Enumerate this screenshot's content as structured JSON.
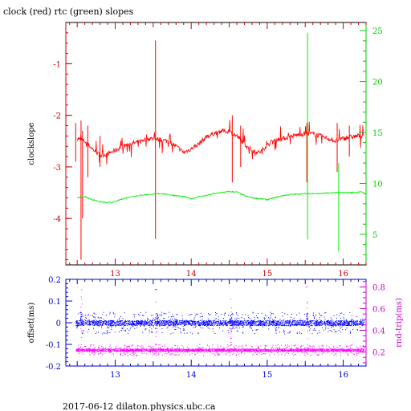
{
  "title": "clock (red) rtc (green) slopes",
  "footer": "2017-06-12  dilaton.physics.ubc.ca",
  "chart_data": [
    {
      "type": "line",
      "panel": "top",
      "xlim": [
        12.35,
        16.3
      ],
      "x_ticks": [
        "13",
        "14",
        "15",
        "16"
      ],
      "ylabel": "clockslope",
      "ylim": [
        -4.9,
        -0.2
      ],
      "y_ticks": [
        "-1",
        "-2",
        "-3",
        "-4"
      ],
      "y2lim": [
        2.0,
        25.8
      ],
      "y2_ticks": [
        "5",
        "10",
        "15",
        "20",
        "25"
      ],
      "colors": {
        "axis_left": "#cc0000",
        "axis_right": "#00cc00",
        "frame": "#000000"
      },
      "series": [
        {
          "axis": "left",
          "color": "#ff0000",
          "points": [
            [
              12.5,
              -2.45
            ],
            [
              12.6,
              -2.5
            ],
            [
              12.7,
              -2.65
            ],
            [
              12.8,
              -2.78
            ],
            [
              12.9,
              -2.75
            ],
            [
              13.0,
              -2.68
            ],
            [
              13.1,
              -2.6
            ],
            [
              13.2,
              -2.55
            ],
            [
              13.3,
              -2.52
            ],
            [
              13.4,
              -2.46
            ],
            [
              13.5,
              -2.45
            ],
            [
              13.6,
              -2.48
            ],
            [
              13.7,
              -2.5
            ],
            [
              13.8,
              -2.6
            ],
            [
              13.9,
              -2.72
            ],
            [
              14.0,
              -2.65
            ],
            [
              14.1,
              -2.55
            ],
            [
              14.2,
              -2.42
            ],
            [
              14.3,
              -2.35
            ],
            [
              14.4,
              -2.3
            ],
            [
              14.5,
              -2.32
            ],
            [
              14.6,
              -2.4
            ],
            [
              14.7,
              -2.55
            ],
            [
              14.8,
              -2.68
            ],
            [
              14.9,
              -2.72
            ],
            [
              15.0,
              -2.58
            ],
            [
              15.1,
              -2.48
            ],
            [
              15.2,
              -2.45
            ],
            [
              15.3,
              -2.42
            ],
            [
              15.4,
              -2.38
            ],
            [
              15.5,
              -2.35
            ],
            [
              15.6,
              -2.36
            ],
            [
              15.7,
              -2.4
            ],
            [
              15.8,
              -2.45
            ],
            [
              15.9,
              -2.5
            ],
            [
              16.0,
              -2.45
            ],
            [
              16.1,
              -2.42
            ],
            [
              16.2,
              -2.4
            ],
            [
              16.27,
              -2.4
            ]
          ],
          "spikes": [
            [
              12.48,
              -2.15,
              -2.9
            ],
            [
              12.55,
              -2.1,
              -4.8
            ],
            [
              12.57,
              -2.3,
              -4.0
            ],
            [
              12.64,
              -2.2,
              -3.2
            ],
            [
              12.8,
              -2.4,
              -3.0
            ],
            [
              13.53,
              -0.55,
              -4.4
            ],
            [
              14.54,
              -2.0,
              -3.3
            ],
            [
              14.65,
              -2.2,
              -3.0
            ],
            [
              15.52,
              -2.15,
              -3.3
            ],
            [
              15.92,
              -2.15,
              -3.1
            ],
            [
              16.08,
              -2.2,
              -2.8
            ]
          ]
        },
        {
          "axis": "right",
          "color": "#00ee00",
          "points": [
            [
              12.5,
              8.6
            ],
            [
              12.6,
              8.7
            ],
            [
              12.7,
              8.4
            ],
            [
              12.8,
              8.2
            ],
            [
              12.9,
              8.1
            ],
            [
              13.0,
              8.2
            ],
            [
              13.1,
              8.5
            ],
            [
              13.2,
              8.7
            ],
            [
              13.3,
              8.8
            ],
            [
              13.4,
              8.9
            ],
            [
              13.5,
              8.95
            ],
            [
              13.6,
              9.0
            ],
            [
              13.7,
              8.9
            ],
            [
              13.8,
              8.8
            ],
            [
              13.9,
              8.7
            ],
            [
              14.0,
              8.5
            ],
            [
              14.1,
              8.7
            ],
            [
              14.2,
              8.8
            ],
            [
              14.3,
              9.0
            ],
            [
              14.4,
              9.1
            ],
            [
              14.5,
              9.2
            ],
            [
              14.6,
              9.15
            ],
            [
              14.7,
              8.8
            ],
            [
              14.8,
              8.6
            ],
            [
              14.9,
              8.5
            ],
            [
              15.0,
              8.4
            ],
            [
              15.1,
              8.6
            ],
            [
              15.2,
              8.8
            ],
            [
              15.3,
              8.9
            ],
            [
              15.4,
              8.95
            ],
            [
              15.5,
              9.0
            ],
            [
              15.6,
              9.0
            ],
            [
              15.7,
              9.0
            ],
            [
              15.8,
              9.05
            ],
            [
              15.9,
              9.1
            ],
            [
              16.0,
              9.1
            ],
            [
              16.1,
              9.1
            ],
            [
              16.2,
              9.15
            ],
            [
              16.27,
              9.15
            ]
          ],
          "spikes": [
            [
              15.53,
              24.8,
              4.5
            ],
            [
              15.94,
              12.0,
              3.3
            ]
          ]
        }
      ]
    },
    {
      "type": "scatter",
      "panel": "bottom",
      "xlim": [
        12.35,
        16.3
      ],
      "x_ticks": [
        "13",
        "14",
        "15",
        "16"
      ],
      "ylabel": "offset(ms)",
      "ylim": [
        -0.2,
        0.2
      ],
      "y_ticks": [
        "0.2",
        "0.1",
        "0",
        "-0.1",
        "-0.2"
      ],
      "y2label": "rnd-trip(ms)",
      "y2lim": [
        0.07,
        0.87
      ],
      "y2_ticks": [
        "0.8",
        "0.6",
        "0.4",
        "0.2"
      ],
      "colors": {
        "offset": "#0000ff",
        "rndtrip": "#ff00ff",
        "axis_right": "#cc00cc"
      },
      "series": [
        {
          "name": "offset",
          "axis": "left",
          "center": 0.0,
          "spread": 0.012,
          "outlier_spread": 0.05,
          "spikes": [
            [
              12.55,
              0.05
            ],
            [
              13.55,
              0.05
            ],
            [
              14.52,
              0.05
            ],
            [
              15.52,
              0.05
            ]
          ]
        },
        {
          "name": "rnd-trip",
          "axis": "right",
          "center": 0.22,
          "spread": 0.012,
          "outlier_spread": 0.05,
          "spikes": [
            [
              12.55,
              0.78
            ],
            [
              13.53,
              0.82
            ],
            [
              14.52,
              0.72
            ],
            [
              15.52,
              0.82
            ]
          ]
        }
      ]
    }
  ]
}
